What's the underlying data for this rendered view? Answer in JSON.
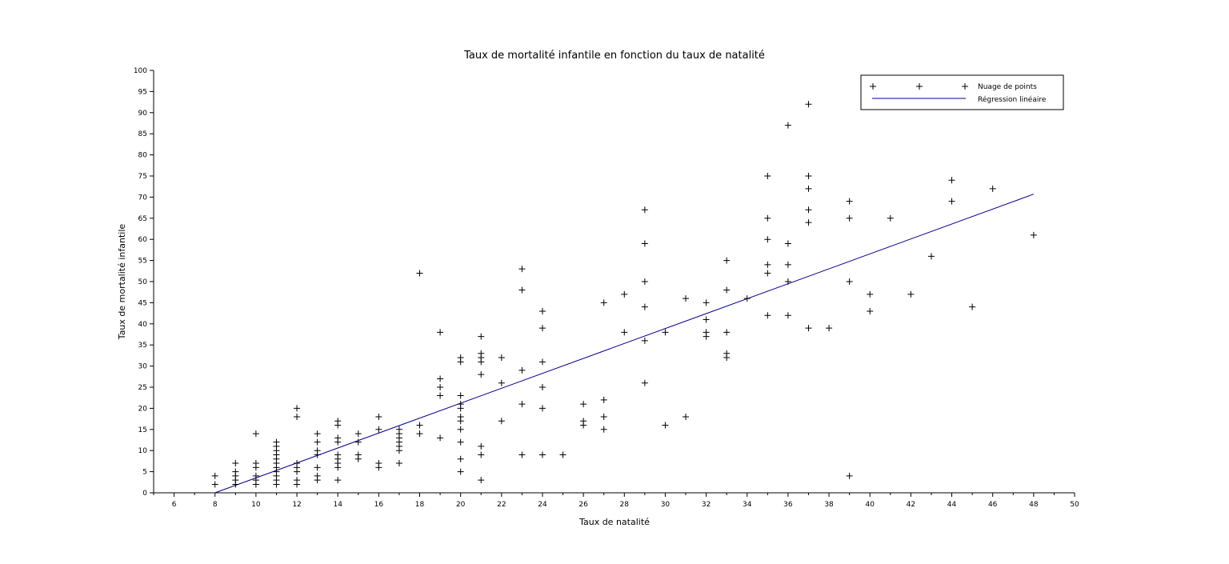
{
  "chart_data": {
    "type": "scatter",
    "title": "Taux de mortalité infantile en fonction du taux de natalité",
    "xlabel": "Taux de natalité",
    "ylabel": "Taux de mortalité infantile",
    "xlim": [
      5,
      50
    ],
    "ylim": [
      0,
      100
    ],
    "x_ticks": [
      "6",
      "8",
      "10",
      "12",
      "14",
      "16",
      "18",
      "20",
      "22",
      "24",
      "26",
      "28",
      "30",
      "32",
      "34",
      "36",
      "38",
      "40",
      "42",
      "44",
      "46",
      "48",
      "50"
    ],
    "y_ticks": [
      "0",
      "5",
      "10",
      "15",
      "20",
      "25",
      "30",
      "35",
      "40",
      "45",
      "50",
      "55",
      "60",
      "65",
      "70",
      "75",
      "80",
      "85",
      "90",
      "95",
      "100"
    ],
    "grid": false,
    "legend_position": "top-right",
    "colors": {
      "points": "#000000",
      "regression": "#00008b"
    },
    "series": [
      {
        "name": "Nuage de points",
        "type": "scatter",
        "marker": "plus",
        "points": [
          [
            8,
            2
          ],
          [
            8,
            4
          ],
          [
            9,
            2
          ],
          [
            9,
            3
          ],
          [
            9,
            4
          ],
          [
            9,
            5
          ],
          [
            9,
            7
          ],
          [
            10,
            2
          ],
          [
            10,
            3
          ],
          [
            10,
            4
          ],
          [
            10,
            6
          ],
          [
            10,
            7
          ],
          [
            10,
            14
          ],
          [
            11,
            2
          ],
          [
            11,
            3
          ],
          [
            11,
            4
          ],
          [
            11,
            5
          ],
          [
            11,
            6
          ],
          [
            11,
            7
          ],
          [
            11,
            8
          ],
          [
            11,
            9
          ],
          [
            11,
            10
          ],
          [
            11,
            11
          ],
          [
            11,
            12
          ],
          [
            12,
            2
          ],
          [
            12,
            3
          ],
          [
            12,
            5
          ],
          [
            12,
            6
          ],
          [
            12,
            7
          ],
          [
            12,
            18
          ],
          [
            12,
            20
          ],
          [
            13,
            3
          ],
          [
            13,
            4
          ],
          [
            13,
            6
          ],
          [
            13,
            9
          ],
          [
            13,
            10
          ],
          [
            13,
            12
          ],
          [
            13,
            14
          ],
          [
            14,
            3
          ],
          [
            14,
            6
          ],
          [
            14,
            7
          ],
          [
            14,
            8
          ],
          [
            14,
            9
          ],
          [
            14,
            12
          ],
          [
            14,
            13
          ],
          [
            14,
            16
          ],
          [
            14,
            17
          ],
          [
            15,
            8
          ],
          [
            15,
            9
          ],
          [
            15,
            12
          ],
          [
            15,
            14
          ],
          [
            16,
            6
          ],
          [
            16,
            7
          ],
          [
            16,
            15
          ],
          [
            16,
            18
          ],
          [
            17,
            7
          ],
          [
            17,
            10
          ],
          [
            17,
            11
          ],
          [
            17,
            12
          ],
          [
            17,
            13
          ],
          [
            17,
            14
          ],
          [
            17,
            15
          ],
          [
            18,
            14
          ],
          [
            18,
            16
          ],
          [
            18,
            52
          ],
          [
            19,
            13
          ],
          [
            19,
            23
          ],
          [
            19,
            25
          ],
          [
            19,
            27
          ],
          [
            19,
            38
          ],
          [
            20,
            5
          ],
          [
            20,
            8
          ],
          [
            20,
            12
          ],
          [
            20,
            15
          ],
          [
            20,
            17
          ],
          [
            20,
            18
          ],
          [
            20,
            20
          ],
          [
            20,
            21
          ],
          [
            20,
            23
          ],
          [
            20,
            31
          ],
          [
            20,
            32
          ],
          [
            21,
            3
          ],
          [
            21,
            9
          ],
          [
            21,
            11
          ],
          [
            21,
            28
          ],
          [
            21,
            31
          ],
          [
            21,
            32
          ],
          [
            21,
            33
          ],
          [
            21,
            37
          ],
          [
            22,
            17
          ],
          [
            22,
            26
          ],
          [
            22,
            32
          ],
          [
            23,
            9
          ],
          [
            23,
            21
          ],
          [
            23,
            29
          ],
          [
            23,
            48
          ],
          [
            23,
            53
          ],
          [
            24,
            9
          ],
          [
            24,
            20
          ],
          [
            24,
            25
          ],
          [
            24,
            31
          ],
          [
            24,
            39
          ],
          [
            24,
            43
          ],
          [
            25,
            9
          ],
          [
            26,
            16
          ],
          [
            26,
            17
          ],
          [
            26,
            21
          ],
          [
            27,
            15
          ],
          [
            27,
            18
          ],
          [
            27,
            22
          ],
          [
            27,
            45
          ],
          [
            28,
            38
          ],
          [
            28,
            47
          ],
          [
            29,
            26
          ],
          [
            29,
            36
          ],
          [
            29,
            44
          ],
          [
            29,
            50
          ],
          [
            29,
            59
          ],
          [
            29,
            67
          ],
          [
            30,
            16
          ],
          [
            30,
            38
          ],
          [
            31,
            18
          ],
          [
            31,
            46
          ],
          [
            32,
            37
          ],
          [
            32,
            38
          ],
          [
            32,
            41
          ],
          [
            32,
            45
          ],
          [
            33,
            32
          ],
          [
            33,
            33
          ],
          [
            33,
            38
          ],
          [
            33,
            48
          ],
          [
            33,
            55
          ],
          [
            34,
            46
          ],
          [
            35,
            42
          ],
          [
            35,
            52
          ],
          [
            35,
            54
          ],
          [
            35,
            60
          ],
          [
            35,
            65
          ],
          [
            35,
            75
          ],
          [
            36,
            42
          ],
          [
            36,
            50
          ],
          [
            36,
            54
          ],
          [
            36,
            59
          ],
          [
            36,
            87
          ],
          [
            37,
            39
          ],
          [
            37,
            64
          ],
          [
            37,
            67
          ],
          [
            37,
            72
          ],
          [
            37,
            75
          ],
          [
            37,
            92
          ],
          [
            38,
            39
          ],
          [
            39,
            4
          ],
          [
            39,
            50
          ],
          [
            39,
            65
          ],
          [
            39,
            69
          ],
          [
            40,
            43
          ],
          [
            40,
            47
          ],
          [
            41,
            65
          ],
          [
            42,
            47
          ],
          [
            43,
            56
          ],
          [
            44,
            69
          ],
          [
            44,
            74
          ],
          [
            45,
            44
          ],
          [
            46,
            72
          ],
          [
            48,
            61
          ]
        ]
      },
      {
        "name": "Régression linéaire",
        "type": "line",
        "points": [
          [
            8,
            0
          ],
          [
            48,
            70.7
          ]
        ]
      }
    ]
  }
}
